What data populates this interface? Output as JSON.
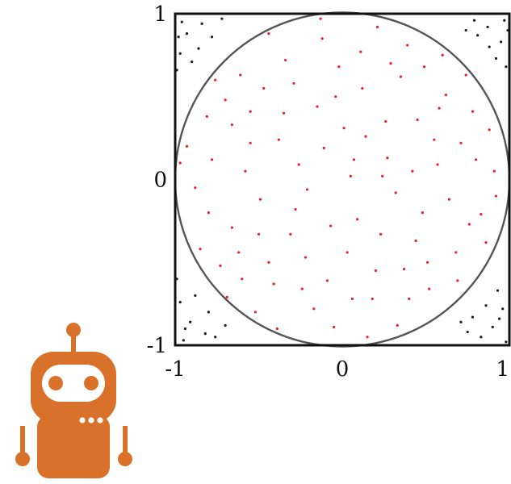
{
  "colors": {
    "inside_points": "#e8202a",
    "outside_points": "#1a1a1a",
    "circle": "#555555",
    "frame": "#111111",
    "robot": "#d9712b"
  },
  "icons": {
    "robot": "robot-mascot-icon"
  },
  "chart_data": {
    "type": "scatter",
    "title": "",
    "xlabel": "",
    "ylabel": "",
    "xlim": [
      -1,
      1
    ],
    "ylim": [
      -1,
      1
    ],
    "x_ticks": [
      -1,
      0,
      1
    ],
    "y_ticks": [
      -1,
      0,
      1
    ],
    "x_tick_labels": [
      "-1",
      "0",
      "1"
    ],
    "y_tick_labels": [
      "-1",
      "0",
      "1"
    ],
    "grid": false,
    "legend": "none",
    "unit_circle": {
      "center": [
        0,
        0
      ],
      "radius": 1
    },
    "series": [
      {
        "points": [
          [
            -0.12,
            0.85
          ],
          [
            0.35,
            0.62
          ],
          [
            -0.55,
            0.41
          ],
          [
            0.71,
            0.22
          ],
          [
            -0.28,
            -0.18
          ],
          [
            0.05,
            0.02
          ],
          [
            0.44,
            -0.37
          ],
          [
            -0.66,
            -0.29
          ],
          [
            0.18,
            -0.72
          ],
          [
            -0.41,
            -0.63
          ],
          [
            0.62,
            0.51
          ],
          [
            -0.78,
            0.12
          ],
          [
            0.83,
            -0.21
          ],
          [
            -0.15,
            0.44
          ],
          [
            0.27,
            0.13
          ],
          [
            -0.34,
            0.72
          ],
          [
            0.52,
            -0.66
          ],
          [
            -0.05,
            -0.89
          ],
          [
            0.91,
            0.05
          ],
          [
            -0.88,
            -0.05
          ],
          [
            0.12,
            0.55
          ],
          [
            -0.61,
            0.63
          ],
          [
            0.39,
            0.81
          ],
          [
            -0.22,
            -0.47
          ],
          [
            0.68,
            -0.44
          ],
          [
            -0.49,
            -0.12
          ],
          [
            0.01,
            0.31
          ],
          [
            0.23,
            -0.33
          ],
          [
            -0.73,
            -0.52
          ],
          [
            0.57,
            0.09
          ],
          [
            -0.09,
            -0.61
          ],
          [
            0.45,
            0.36
          ],
          [
            -0.38,
            0.24
          ],
          [
            0.78,
            0.41
          ],
          [
            -0.81,
            0.38
          ],
          [
            0.15,
            -0.95
          ],
          [
            -0.58,
            0.05
          ],
          [
            0.32,
            -0.08
          ],
          [
            -0.02,
            0.68
          ],
          [
            0.64,
            -0.12
          ],
          [
            -0.26,
            0.09
          ],
          [
            0.09,
            -0.24
          ],
          [
            -0.69,
            -0.71
          ],
          [
            0.49,
            0.68
          ],
          [
            -0.44,
            0.88
          ],
          [
            0.86,
            -0.38
          ],
          [
            -0.93,
            0.2
          ],
          [
            0.21,
            0.92
          ],
          [
            -0.17,
            -0.78
          ],
          [
            0.74,
            0.63
          ],
          [
            -0.52,
            -0.8
          ],
          [
            0.37,
            -0.54
          ],
          [
            -0.31,
            -0.33
          ],
          [
            0.03,
            -0.44
          ],
          [
            0.55,
            0.24
          ],
          [
            -0.7,
            0.48
          ],
          [
            0.26,
            0.35
          ],
          [
            -0.11,
            0.19
          ],
          [
            0.69,
            -0.61
          ],
          [
            -0.85,
            -0.42
          ],
          [
            0.42,
            0.05
          ],
          [
            -0.47,
            0.55
          ],
          [
            0.11,
            0.77
          ],
          [
            -0.21,
            -0.06
          ],
          [
            0.8,
            0.12
          ],
          [
            -0.62,
            -0.44
          ],
          [
            0.33,
            -0.88
          ],
          [
            -0.39,
            -0.9
          ],
          [
            0.6,
            0.75
          ],
          [
            -0.76,
            0.6
          ],
          [
            0.07,
            0.12
          ],
          [
            -0.07,
            -0.28
          ],
          [
            0.48,
            -0.2
          ],
          [
            -0.55,
            0.22
          ],
          [
            0.2,
            -0.55
          ],
          [
            -0.29,
            0.58
          ],
          [
            0.92,
            -0.1
          ],
          [
            -0.97,
            0.1
          ],
          [
            0.14,
            0.26
          ],
          [
            -0.44,
            -0.5
          ],
          [
            0.58,
            0.43
          ],
          [
            -0.13,
            0.97
          ],
          [
            0.29,
            0.7
          ],
          [
            -0.66,
            0.33
          ],
          [
            0.76,
            -0.27
          ],
          [
            -0.24,
            -0.66
          ],
          [
            0.4,
            -0.72
          ],
          [
            -0.6,
            -0.6
          ],
          [
            0.06,
            -0.72
          ],
          [
            -0.35,
            0.4
          ],
          [
            0.51,
            -0.5
          ],
          [
            -0.8,
            -0.2
          ],
          [
            0.88,
            0.3
          ],
          [
            -0.04,
            0.5
          ],
          [
            0.24,
            0.02
          ],
          [
            -0.5,
            -0.33
          ]
        ]
      },
      {
        "points": [
          [
            -0.93,
            0.88
          ],
          [
            -0.84,
            0.94
          ],
          [
            -0.97,
            0.76
          ],
          [
            -0.9,
            0.71
          ],
          [
            -0.78,
            0.86
          ],
          [
            -0.96,
            0.95
          ],
          [
            -0.72,
            0.97
          ],
          [
            -0.99,
            0.66
          ],
          [
            0.87,
            0.92
          ],
          [
            0.95,
            0.83
          ],
          [
            0.79,
            0.96
          ],
          [
            0.92,
            0.73
          ],
          [
            0.98,
            0.68
          ],
          [
            0.74,
            0.9
          ],
          [
            0.88,
            0.8
          ],
          [
            0.97,
            0.96
          ],
          [
            -0.91,
            -0.86
          ],
          [
            -0.82,
            -0.93
          ],
          [
            -0.97,
            -0.74
          ],
          [
            -0.76,
            -0.95
          ],
          [
            -0.88,
            -0.7
          ],
          [
            -0.95,
            -0.97
          ],
          [
            -0.7,
            -0.88
          ],
          [
            -0.99,
            -0.6
          ],
          [
            0.9,
            -0.89
          ],
          [
            0.83,
            -0.95
          ],
          [
            0.96,
            -0.78
          ],
          [
            0.75,
            -0.92
          ],
          [
            0.93,
            -0.67
          ],
          [
            0.98,
            -0.98
          ],
          [
            0.71,
            -0.86
          ],
          [
            0.86,
            -0.76
          ],
          [
            -0.86,
            0.79
          ],
          [
            0.81,
            0.87
          ],
          [
            -0.8,
            -0.8
          ],
          [
            0.78,
            -0.83
          ],
          [
            -0.98,
            0.86
          ],
          [
            0.99,
            0.9
          ],
          [
            -0.94,
            -0.9
          ],
          [
            0.94,
            -0.84
          ]
        ]
      }
    ]
  }
}
